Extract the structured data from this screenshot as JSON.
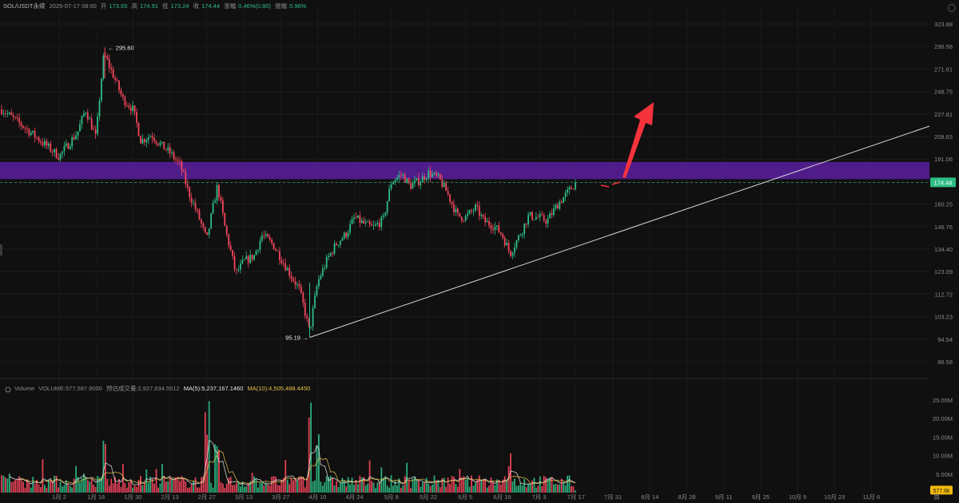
{
  "header": {
    "symbol": "SOL/USDT永续",
    "datetime": "2025-07-17 08:00",
    "open_label": "开",
    "open": "173.65",
    "high_label": "高",
    "high": "174.91",
    "low_label": "低",
    "low": "173.24",
    "close_label": "收",
    "close": "174.44",
    "change_label": "涨幅",
    "change": "0.46%(0.80)",
    "amplitude_label": "振幅",
    "amplitude": "0.96%"
  },
  "volume_header": {
    "title": "Volume",
    "volume": "VOLUME:577,597.9000",
    "forecast": "预估成交量:2,927,634.5512",
    "ma5": "MA(5):5,237,167.1460",
    "ma10": "MA(10):4,505,488.4450"
  },
  "colors": {
    "background": "#101010",
    "up": "#2ebd85",
    "down": "#f6465d",
    "band": "#5a1fa0",
    "arrow": "#f4333c",
    "ma5": "#e8e8e8",
    "ma10": "#e6c14a",
    "last_price_tag": "#2ebd85",
    "volume_tag": "#f0b90b"
  },
  "chart_data": {
    "type": "candlestick",
    "price_axis_ticks": [
      "323.88",
      "296.58",
      "271.61",
      "248.75",
      "227.81",
      "208.63",
      "191.06",
      "174.44",
      "160.25",
      "146.76",
      "134.40",
      "123.09",
      "112.72",
      "103.23",
      "94.54",
      "86.58"
    ],
    "volume_axis_ticks": [
      "25.00M",
      "20.00M",
      "15.00M",
      "10.00M",
      "5.00M",
      "577.6k"
    ],
    "time_axis_ticks": [
      "1月 2",
      "1月 16",
      "1月 30",
      "2月 13",
      "2月 27",
      "3月 13",
      "3月 27",
      "4月 10",
      "4月 24",
      "5月 8",
      "5月 22",
      "6月 5",
      "6月 19",
      "7月 3",
      "7月 17",
      "7月 31",
      "8月 14",
      "8月 28",
      "9月 11",
      "9月 25",
      "10月 9",
      "10月 23",
      "11月 6",
      "周"
    ],
    "annotations": {
      "high_label": "295.60",
      "low_label": "95.19",
      "last_price": "174.44"
    },
    "resistance_zone": [
      180,
      186
    ],
    "path_points": [
      {
        "date": "12月 19",
        "price": 232
      },
      {
        "date": "12月 26",
        "price": 205
      },
      {
        "date": "1月 2",
        "price": 193
      },
      {
        "date": "1月 9",
        "price": 212
      },
      {
        "date": "1月 12",
        "price": 232
      },
      {
        "date": "1月 16",
        "price": 207
      },
      {
        "date": "1月 19",
        "price": 288
      },
      {
        "date": "1月 23",
        "price": 262
      },
      {
        "date": "1月 26",
        "price": 242
      },
      {
        "date": "1月 30",
        "price": 232
      },
      {
        "date": "2月 2",
        "price": 205
      },
      {
        "date": "2月 6",
        "price": 210
      },
      {
        "date": "2月 10",
        "price": 201
      },
      {
        "date": "2月 13",
        "price": 196
      },
      {
        "date": "2月 17",
        "price": 186
      },
      {
        "date": "2月 20",
        "price": 168
      },
      {
        "date": "2月 24",
        "price": 152
      },
      {
        "date": "2月 27",
        "price": 139
      },
      {
        "date": "3月 3",
        "price": 172
      },
      {
        "date": "3月 6",
        "price": 145
      },
      {
        "date": "3月 10",
        "price": 122
      },
      {
        "date": "3月 13",
        "price": 128
      },
      {
        "date": "3月 17",
        "price": 131
      },
      {
        "date": "3月 20",
        "price": 142
      },
      {
        "date": "3月 24",
        "price": 137
      },
      {
        "date": "3月 27",
        "price": 130
      },
      {
        "date": "3月 31",
        "price": 121
      },
      {
        "date": "4月 3",
        "price": 115
      },
      {
        "date": "4月 7",
        "price": 97
      },
      {
        "date": "4月 10",
        "price": 118
      },
      {
        "date": "4月 14",
        "price": 130
      },
      {
        "date": "4月 17",
        "price": 137
      },
      {
        "date": "4月 21",
        "price": 143
      },
      {
        "date": "4月 24",
        "price": 152
      },
      {
        "date": "4月 28",
        "price": 148
      },
      {
        "date": "5月 1",
        "price": 146
      },
      {
        "date": "5月 5",
        "price": 151
      },
      {
        "date": "5月 8",
        "price": 175
      },
      {
        "date": "5月 12",
        "price": 180
      },
      {
        "date": "5月 15",
        "price": 172
      },
      {
        "date": "5月 19",
        "price": 176
      },
      {
        "date": "5月 22",
        "price": 181
      },
      {
        "date": "5月 26",
        "price": 177
      },
      {
        "date": "5月 29",
        "price": 168
      },
      {
        "date": "6月 2",
        "price": 153
      },
      {
        "date": "6月 5",
        "price": 152
      },
      {
        "date": "6月 9",
        "price": 158
      },
      {
        "date": "6月 12",
        "price": 150
      },
      {
        "date": "6月 16",
        "price": 147
      },
      {
        "date": "6月 19",
        "price": 142
      },
      {
        "date": "6月 22",
        "price": 132
      },
      {
        "date": "6月 26",
        "price": 143
      },
      {
        "date": "6月 29",
        "price": 153
      },
      {
        "date": "7月 3",
        "price": 152
      },
      {
        "date": "7月 6",
        "price": 150
      },
      {
        "date": "7月 10",
        "price": 160
      },
      {
        "date": "7月 14",
        "price": 168
      },
      {
        "date": "7月 17",
        "price": 174.44
      }
    ]
  }
}
